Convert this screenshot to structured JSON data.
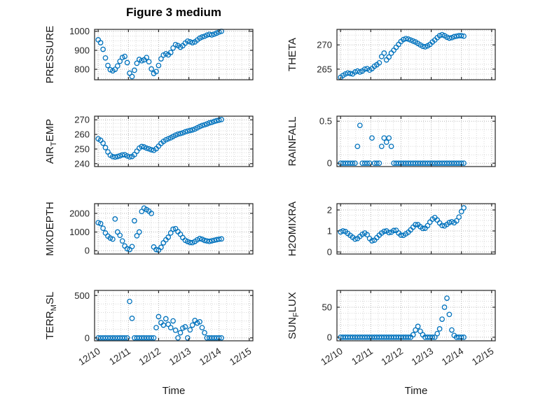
{
  "figure": {
    "title": "Figure 3 medium",
    "xlabel": "Time",
    "accent_color": "#0072BD",
    "axis_color": "#262626",
    "grid_color": "#b5b5b5",
    "minor_grid_color": "#d8d8d8"
  },
  "x_axis": {
    "tick_labels": [
      "12/10",
      "12/11",
      "12/12",
      "12/13",
      "12/14",
      "12/15"
    ],
    "ticks": [
      0,
      1,
      2,
      3,
      4,
      5
    ],
    "lim": [
      -0.12,
      5.12
    ],
    "minor_step": 0.25
  },
  "chart_data": {
    "type": "scatter",
    "title": "Figure 3 medium",
    "xlabel": "Time",
    "x_unit": "days since 12/10",
    "x": [
      0,
      0.08,
      0.16,
      0.24,
      0.32,
      0.4,
      0.48,
      0.56,
      0.64,
      0.72,
      0.8,
      0.88,
      0.96,
      1.04,
      1.12,
      1.2,
      1.28,
      1.36,
      1.44,
      1.52,
      1.6,
      1.68,
      1.76,
      1.84,
      1.92,
      2,
      2.08,
      2.16,
      2.24,
      2.32,
      2.4,
      2.48,
      2.56,
      2.64,
      2.72,
      2.8,
      2.88,
      2.96,
      3.04,
      3.12,
      3.2,
      3.28,
      3.36,
      3.44,
      3.52,
      3.6,
      3.68,
      3.76,
      3.84,
      3.92,
      4,
      4.08
    ],
    "charts": [
      {
        "name": "PRESSURE",
        "label": {
          "pre": "PRESSURE",
          "sub": "",
          "post": ""
        },
        "ylim": [
          745,
          1010
        ],
        "yticks": [
          800,
          900,
          1000
        ],
        "yminor": 25,
        "y": [
          955,
          940,
          905,
          860,
          820,
          798,
          792,
          800,
          818,
          842,
          862,
          868,
          835,
          780,
          762,
          795,
          832,
          852,
          845,
          850,
          862,
          840,
          802,
          778,
          788,
          820,
          855,
          875,
          882,
          876,
          888,
          912,
          930,
          925,
          916,
          924,
          938,
          948,
          945,
          940,
          944,
          954,
          964,
          970,
          974,
          980,
          984,
          981,
          985,
          990,
          996,
          1000
        ]
      },
      {
        "name": "THETA",
        "label": {
          "pre": "THETA",
          "sub": "",
          "post": ""
        },
        "ylim": [
          262.8,
          273.2
        ],
        "yticks": [
          265,
          270
        ],
        "yminor": 1,
        "y": [
          263.3,
          263.7,
          264,
          264.2,
          264.1,
          264,
          264.4,
          264.6,
          264.4,
          264.6,
          265,
          265.1,
          264.8,
          265.1,
          265.6,
          265.9,
          266.3,
          267.6,
          268.3,
          266.9,
          267.5,
          268.3,
          268.9,
          269.5,
          270.1,
          270.7,
          271.1,
          271.3,
          271.2,
          271,
          270.8,
          270.6,
          270.3,
          270,
          269.7,
          269.6,
          269.8,
          270.1,
          270.6,
          271,
          271.5,
          271.9,
          272.1,
          271.9,
          271.6,
          271.4,
          271.5,
          271.7,
          271.8,
          271.9,
          271.9,
          271.8
        ]
      },
      {
        "name": "AIR_TEMP",
        "label": {
          "pre": "AIR",
          "sub": "T",
          "post": "EMP"
        },
        "ylim": [
          238,
          272.5
        ],
        "yticks": [
          240,
          250,
          260,
          270
        ],
        "yminor": 2.5,
        "y": [
          257,
          256,
          254,
          251,
          248,
          245.8,
          244.8,
          244.5,
          244.9,
          245.4,
          246,
          246.1,
          245.3,
          244.6,
          244.9,
          246.2,
          248.5,
          250.6,
          251.7,
          251.4,
          250.6,
          250.1,
          249.5,
          249.1,
          250.2,
          252,
          253.8,
          255.2,
          256.3,
          257,
          257.7,
          258.6,
          259.5,
          260.2,
          260.6,
          261.1,
          261.8,
          262.3,
          262.7,
          263.1,
          263.7,
          264.5,
          265.4,
          266.1,
          266.6,
          267.2,
          267.9,
          268.3,
          268.9,
          269.4,
          269.8,
          270.2
        ]
      },
      {
        "name": "RAINFALL",
        "label": {
          "pre": "RAINFALL",
          "sub": "",
          "post": ""
        },
        "ylim": [
          -0.04,
          0.56
        ],
        "yticks": [
          0,
          0.5
        ],
        "yminor": 0.1,
        "y": [
          0,
          0,
          0,
          0,
          0,
          0,
          0,
          0.2,
          0.45,
          0,
          0,
          0,
          0,
          0.3,
          0,
          0,
          0,
          0.2,
          0.3,
          0.25,
          0.3,
          0.2,
          0,
          0,
          0,
          0,
          0,
          0,
          0,
          0,
          0,
          0,
          0,
          0,
          0,
          0,
          0,
          0,
          0,
          0,
          0,
          0,
          0,
          0,
          0,
          0,
          0,
          0,
          0,
          0,
          0,
          0
        ]
      },
      {
        "name": "MIXDEPTH",
        "label": {
          "pre": "MIXDEPTH",
          "sub": "",
          "post": ""
        },
        "ylim": [
          -180,
          2520
        ],
        "yticks": [
          0,
          1000,
          2000
        ],
        "yminor": 250,
        "y": [
          1500,
          1450,
          1200,
          950,
          780,
          680,
          620,
          1700,
          1000,
          820,
          520,
          250,
          100,
          60,
          220,
          1600,
          800,
          1000,
          2100,
          2280,
          2200,
          2120,
          2000,
          200,
          60,
          30,
          180,
          420,
          580,
          720,
          950,
          1150,
          1180,
          1020,
          880,
          700,
          560,
          490,
          440,
          430,
          490,
          580,
          650,
          610,
          550,
          520,
          500,
          530,
          560,
          590,
          610,
          630
        ]
      },
      {
        "name": "H2OMIXRA",
        "label": {
          "pre": "H2OMIXRA",
          "sub": "",
          "post": ""
        },
        "ylim": [
          -0.1,
          2.3
        ],
        "yticks": [
          0,
          1,
          2
        ],
        "yminor": 0.25,
        "y": [
          0.95,
          1,
          0.97,
          0.88,
          0.79,
          0.7,
          0.61,
          0.64,
          0.74,
          0.84,
          0.9,
          0.82,
          0.64,
          0.53,
          0.56,
          0.68,
          0.8,
          0.9,
          0.98,
          1,
          0.92,
          0.94,
          1.02,
          1.03,
          0.9,
          0.8,
          0.79,
          0.86,
          0.94,
          1.05,
          1.18,
          1.3,
          1.3,
          1.2,
          1.12,
          1.13,
          1.25,
          1.42,
          1.56,
          1.64,
          1.52,
          1.38,
          1.26,
          1.24,
          1.31,
          1.4,
          1.44,
          1.39,
          1.48,
          1.66,
          1.92,
          2.1
        ]
      },
      {
        "name": "TERR_MSL",
        "label": {
          "pre": "TERR",
          "sub": "M",
          "post": "SL"
        },
        "ylim": [
          -35,
          560
        ],
        "yticks": [
          0,
          500
        ],
        "yminor": 100,
        "y": [
          0,
          0,
          0,
          0,
          0,
          0,
          0,
          0,
          0,
          0,
          0,
          0,
          0,
          430,
          230,
          0,
          0,
          0,
          0,
          0,
          0,
          0,
          0,
          0,
          120,
          250,
          180,
          150,
          225,
          160,
          120,
          200,
          90,
          0,
          60,
          115,
          130,
          0,
          95,
          150,
          205,
          175,
          190,
          120,
          60,
          0,
          0,
          0,
          0,
          0,
          0,
          0
        ]
      },
      {
        "name": "SUN_FLUX",
        "label": {
          "pre": "SUN",
          "sub": "F",
          "post": "LUX"
        },
        "ylim": [
          -6,
          78
        ],
        "yticks": [
          0,
          50
        ],
        "yminor": 10,
        "y": [
          0,
          0,
          0,
          0,
          0,
          0,
          0,
          0,
          0,
          0,
          0,
          0,
          0,
          0,
          0,
          0,
          0,
          0,
          0,
          0,
          0,
          0,
          0,
          0,
          0,
          0,
          0,
          0,
          0,
          0,
          4,
          12,
          18,
          10,
          4,
          0,
          0,
          0,
          0,
          0,
          6,
          14,
          30,
          50,
          65,
          38,
          12,
          3,
          0,
          0,
          0,
          0
        ]
      }
    ]
  }
}
